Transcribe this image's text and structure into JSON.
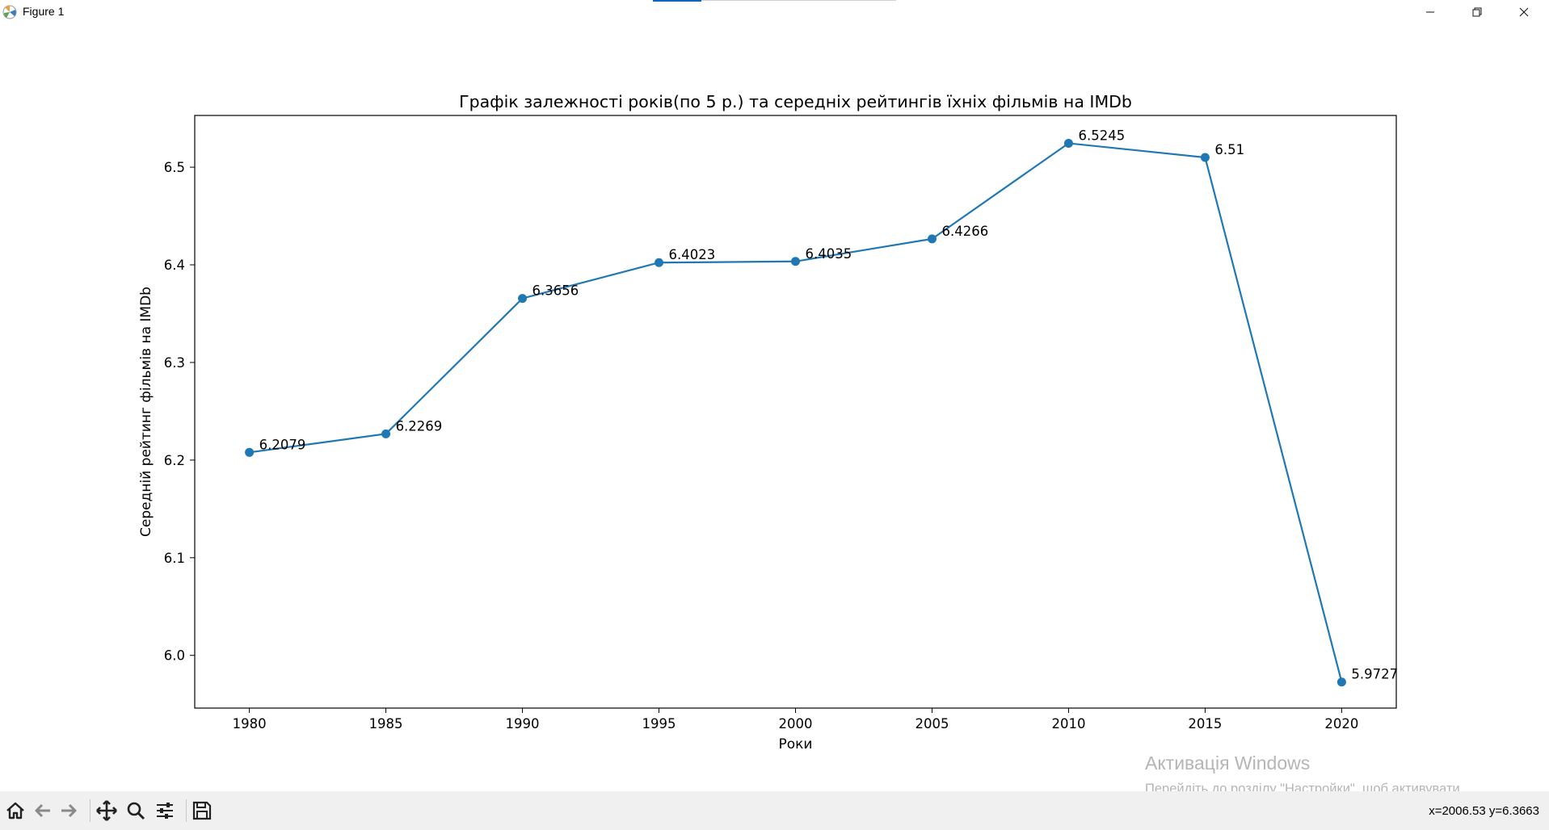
{
  "window": {
    "title": "Figure 1",
    "minimize_icon": "minimize-icon",
    "restore_icon": "restore-icon",
    "close_icon": "close-icon"
  },
  "chart_data": {
    "type": "line",
    "title": "Графік залежності років(по 5 р.) та середніх рейтингів їхніх фільмів на IMDb",
    "xlabel": "Роки",
    "ylabel": "Середній рейтинг фільмів на IMDb",
    "x": [
      1980,
      1985,
      1990,
      1995,
      2000,
      2005,
      2010,
      2015,
      2020
    ],
    "y": [
      6.2079,
      6.2269,
      6.3656,
      6.4023,
      6.4035,
      6.4266,
      6.5245,
      6.51,
      5.9727
    ],
    "point_labels": [
      "6.2079",
      "6.2269",
      "6.3656",
      "6.4023",
      "6.4035",
      "6.4266",
      "6.5245",
      "6.51",
      "5.9727"
    ],
    "xticks": [
      "1980",
      "1985",
      "1990",
      "1995",
      "2000",
      "2005",
      "2010",
      "2015",
      "2020"
    ],
    "yticks": [
      "6.0",
      "6.1",
      "6.2",
      "6.3",
      "6.4",
      "6.5"
    ],
    "xlim": [
      1978,
      2022
    ],
    "ylim": [
      5.946,
      6.553
    ],
    "grid": false,
    "color": "#1f77b4",
    "marker": "circle"
  },
  "watermark": {
    "title": "Активація Windows",
    "text": "Перейдіть до розділу \"Настройки\", щоб активувати Windows."
  },
  "toolbar": {
    "tools": [
      "home-icon",
      "back-icon",
      "forward-icon",
      "pan-icon",
      "zoom-icon",
      "configure-subplots-icon",
      "save-icon"
    ],
    "coords": "x=2006.53 y=6.3663"
  }
}
